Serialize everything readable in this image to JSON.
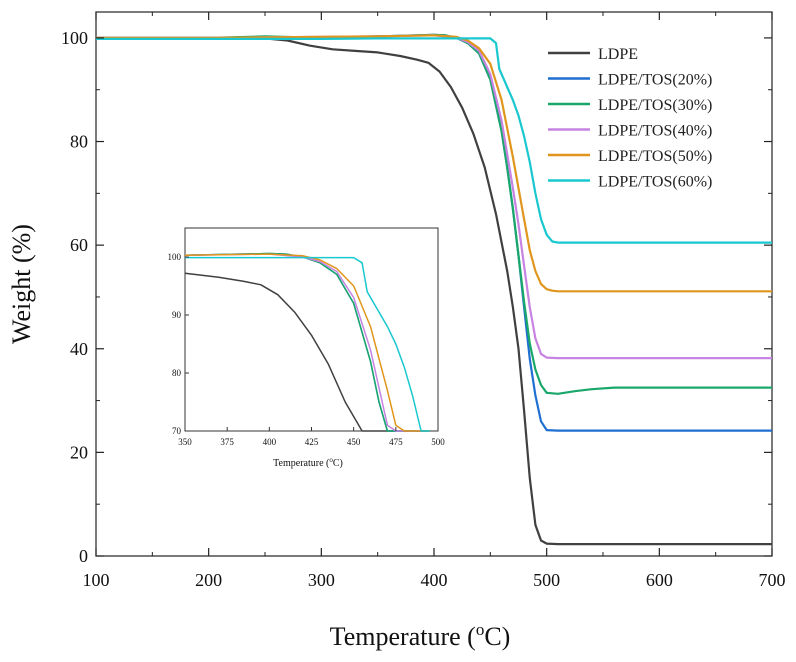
{
  "chart_data": [
    {
      "type": "line",
      "xlabel": "Temperature (°C)",
      "xlabel_prefix": "Temperature (",
      "xlabel_sup": "o",
      "xlabel_suffix": "C)",
      "ylabel": "Weight (%)",
      "xlim": [
        100,
        700
      ],
      "ylim": [
        0,
        105
      ],
      "xticks": [
        100,
        200,
        300,
        400,
        500,
        600,
        700
      ],
      "yticks": [
        0,
        20,
        40,
        60,
        80,
        100
      ],
      "legend_position": "top-right",
      "series": [
        {
          "name": "LDPE",
          "color": "#404040",
          "x": [
            100,
            150,
            200,
            250,
            270,
            290,
            310,
            330,
            350,
            370,
            385,
            395,
            405,
            415,
            425,
            435,
            445,
            455,
            465,
            470,
            475,
            480,
            485,
            490,
            495,
            500,
            510,
            550,
            600,
            650,
            700
          ],
          "y": [
            100,
            100,
            100,
            99.9,
            99.5,
            98.5,
            97.8,
            97.5,
            97.2,
            96.5,
            95.8,
            95.2,
            93.5,
            90.5,
            86.5,
            81.5,
            75,
            66,
            55,
            48,
            40,
            28,
            15,
            6,
            3,
            2.4,
            2.3,
            2.3,
            2.3,
            2.3,
            2.3
          ]
        },
        {
          "name": "LDPE/TOS(20%)",
          "color": "#1f6fd0",
          "x": [
            100,
            200,
            300,
            350,
            400,
            410,
            420,
            430,
            440,
            450,
            460,
            465,
            470,
            475,
            480,
            485,
            490,
            495,
            500,
            510,
            550,
            600,
            700
          ],
          "y": [
            100,
            100,
            100,
            100.3,
            100.6,
            100.5,
            100,
            99,
            97,
            92,
            82,
            75,
            67,
            58,
            48,
            38,
            31,
            26,
            24.3,
            24.2,
            24.2,
            24.2,
            24.2
          ]
        },
        {
          "name": "LDPE/TOS(30%)",
          "color": "#1aa86a",
          "x": [
            100,
            200,
            250,
            300,
            350,
            400,
            410,
            420,
            430,
            440,
            450,
            460,
            465,
            470,
            475,
            480,
            485,
            490,
            495,
            500,
            510,
            525,
            540,
            560,
            600,
            650,
            700
          ],
          "y": [
            100,
            100,
            100.3,
            100,
            100.3,
            100.6,
            100.5,
            100,
            99,
            97,
            92,
            82,
            75,
            67,
            58,
            49,
            41,
            36,
            33,
            31.5,
            31.3,
            31.8,
            32.2,
            32.5,
            32.5,
            32.5,
            32.5
          ]
        },
        {
          "name": "LDPE/TOS(40%)",
          "color": "#c683e2",
          "x": [
            100,
            200,
            300,
            350,
            400,
            420,
            430,
            440,
            450,
            460,
            470,
            475,
            480,
            485,
            490,
            495,
            500,
            510,
            550,
            600,
            700
          ],
          "y": [
            100,
            100,
            100.2,
            100.3,
            100.5,
            100,
            99.2,
            97.5,
            93,
            84,
            71,
            64,
            56,
            48,
            42,
            39,
            38.3,
            38.2,
            38.2,
            38.2,
            38.2
          ]
        },
        {
          "name": "LDPE/TOS(50%)",
          "color": "#e0961c",
          "x": [
            100,
            200,
            300,
            350,
            400,
            420,
            430,
            440,
            450,
            460,
            470,
            475,
            480,
            485,
            490,
            495,
            500,
            505,
            510,
            550,
            600,
            700
          ],
          "y": [
            100,
            100,
            100.2,
            100.3,
            100.5,
            100.2,
            99.5,
            98,
            95,
            88,
            77,
            71,
            65,
            59,
            55,
            52.5,
            51.5,
            51.2,
            51.1,
            51.1,
            51.1,
            51.1
          ]
        },
        {
          "name": "LDPE/TOS(60%)",
          "color": "#19c7cf",
          "x": [
            100,
            200,
            300,
            350,
            400,
            440,
            450,
            455,
            458,
            462,
            465,
            470,
            475,
            480,
            485,
            490,
            495,
            500,
            505,
            510,
            550,
            600,
            700
          ],
          "y": [
            99.8,
            99.8,
            99.8,
            99.9,
            99.9,
            99.9,
            99.9,
            99,
            94,
            92,
            90.5,
            88,
            85,
            81,
            76,
            70,
            65,
            62,
            60.7,
            60.5,
            60.5,
            60.5,
            60.5
          ]
        }
      ]
    },
    {
      "type": "line",
      "xlabel": "Temperature (°C)",
      "xlabel_prefix": "Temperature (",
      "xlabel_sup": "o",
      "xlabel_suffix": "C)",
      "xlim": [
        350,
        500
      ],
      "ylim": [
        70,
        105
      ],
      "xticks": [
        350,
        375,
        400,
        425,
        450,
        475,
        500
      ],
      "yticks": [
        70,
        80,
        90,
        100
      ],
      "series_ref": "same series as main chart, zoomed"
    }
  ]
}
